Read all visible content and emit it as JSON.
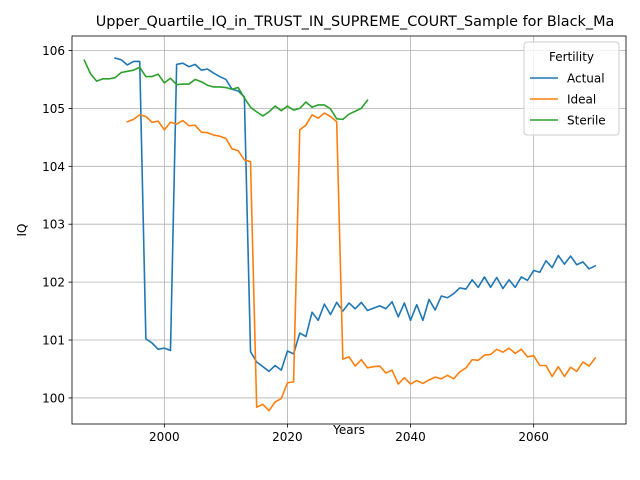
{
  "chart_data": {
    "type": "line",
    "title": "Upper_Quartile_IQ_in_TRUST_IN_SUPREME_COURT_Sample for Black_Ma",
    "xlabel": "Years",
    "ylabel": "IQ",
    "xlim": [
      1985,
      2075
    ],
    "ylim": [
      99.55,
      106.25
    ],
    "xticks": [
      2000,
      2020,
      2040,
      2060
    ],
    "yticks": [
      100,
      101,
      102,
      103,
      104,
      105,
      106
    ],
    "grid": true,
    "legend": {
      "title": "Fertility",
      "placement": "top-right"
    },
    "series": [
      {
        "name": "Actual",
        "color": "#1f77b4",
        "points": [
          [
            1992,
            105.87
          ],
          [
            1993,
            105.84
          ],
          [
            1994,
            105.75
          ],
          [
            1995,
            105.81
          ],
          [
            1996,
            105.81
          ],
          [
            1997,
            101.02
          ],
          [
            1998,
            100.95
          ],
          [
            1999,
            100.84
          ],
          [
            2000,
            100.86
          ],
          [
            2001,
            100.82
          ],
          [
            2002,
            105.76
          ],
          [
            2003,
            105.78
          ],
          [
            2004,
            105.72
          ],
          [
            2005,
            105.76
          ],
          [
            2006,
            105.66
          ],
          [
            2007,
            105.68
          ],
          [
            2008,
            105.61
          ],
          [
            2009,
            105.55
          ],
          [
            2010,
            105.5
          ],
          [
            2011,
            105.33
          ],
          [
            2012,
            105.3
          ],
          [
            2013,
            105.2
          ],
          [
            2014,
            100.8
          ],
          [
            2015,
            100.62
          ],
          [
            2016,
            100.54
          ],
          [
            2017,
            100.46
          ],
          [
            2018,
            100.56
          ],
          [
            2019,
            100.48
          ],
          [
            2020,
            100.81
          ],
          [
            2021,
            100.76
          ],
          [
            2022,
            101.12
          ],
          [
            2023,
            101.06
          ],
          [
            2024,
            101.48
          ],
          [
            2025,
            101.34
          ],
          [
            2026,
            101.62
          ],
          [
            2027,
            101.44
          ],
          [
            2028,
            101.65
          ],
          [
            2029,
            101.5
          ],
          [
            2030,
            101.64
          ],
          [
            2031,
            101.54
          ],
          [
            2032,
            101.65
          ],
          [
            2033,
            101.51
          ],
          [
            2034,
            101.55
          ],
          [
            2035,
            101.59
          ],
          [
            2036,
            101.54
          ],
          [
            2037,
            101.66
          ],
          [
            2038,
            101.4
          ],
          [
            2039,
            101.64
          ],
          [
            2040,
            101.34
          ],
          [
            2041,
            101.61
          ],
          [
            2042,
            101.34
          ],
          [
            2043,
            101.7
          ],
          [
            2044,
            101.52
          ],
          [
            2045,
            101.76
          ],
          [
            2046,
            101.73
          ],
          [
            2047,
            101.8
          ],
          [
            2048,
            101.9
          ],
          [
            2049,
            101.88
          ],
          [
            2050,
            102.04
          ],
          [
            2051,
            101.91
          ],
          [
            2052,
            102.09
          ],
          [
            2053,
            101.91
          ],
          [
            2054,
            102.08
          ],
          [
            2055,
            101.89
          ],
          [
            2056,
            102.04
          ],
          [
            2057,
            101.91
          ],
          [
            2058,
            102.09
          ],
          [
            2059,
            102.03
          ],
          [
            2060,
            102.2
          ],
          [
            2061,
            102.17
          ],
          [
            2062,
            102.37
          ],
          [
            2063,
            102.25
          ],
          [
            2064,
            102.46
          ],
          [
            2065,
            102.31
          ],
          [
            2066,
            102.45
          ],
          [
            2067,
            102.3
          ],
          [
            2068,
            102.35
          ],
          [
            2069,
            102.23
          ],
          [
            2070,
            102.28
          ]
        ]
      },
      {
        "name": "Ideal",
        "color": "#ff7f0e",
        "points": [
          [
            1994,
            104.77
          ],
          [
            1995,
            104.81
          ],
          [
            1996,
            104.89
          ],
          [
            1997,
            104.86
          ],
          [
            1998,
            104.76
          ],
          [
            1999,
            104.78
          ],
          [
            2000,
            104.63
          ],
          [
            2001,
            104.76
          ],
          [
            2002,
            104.73
          ],
          [
            2003,
            104.79
          ],
          [
            2004,
            104.7
          ],
          [
            2005,
            104.71
          ],
          [
            2006,
            104.59
          ],
          [
            2007,
            104.58
          ],
          [
            2008,
            104.54
          ],
          [
            2009,
            104.52
          ],
          [
            2010,
            104.48
          ],
          [
            2011,
            104.3
          ],
          [
            2012,
            104.27
          ],
          [
            2013,
            104.11
          ],
          [
            2014,
            104.08
          ],
          [
            2015,
            99.84
          ],
          [
            2016,
            99.89
          ],
          [
            2017,
            99.78
          ],
          [
            2018,
            99.93
          ],
          [
            2019,
            99.99
          ],
          [
            2020,
            100.26
          ],
          [
            2021,
            100.28
          ],
          [
            2022,
            104.63
          ],
          [
            2023,
            104.71
          ],
          [
            2024,
            104.89
          ],
          [
            2025,
            104.83
          ],
          [
            2026,
            104.92
          ],
          [
            2027,
            104.86
          ],
          [
            2028,
            104.77
          ],
          [
            2029,
            100.67
          ],
          [
            2030,
            100.71
          ],
          [
            2031,
            100.55
          ],
          [
            2032,
            100.66
          ],
          [
            2033,
            100.52
          ],
          [
            2034,
            100.54
          ],
          [
            2035,
            100.55
          ],
          [
            2036,
            100.43
          ],
          [
            2037,
            100.48
          ],
          [
            2038,
            100.24
          ],
          [
            2039,
            100.35
          ],
          [
            2040,
            100.24
          ],
          [
            2041,
            100.3
          ],
          [
            2042,
            100.25
          ],
          [
            2043,
            100.31
          ],
          [
            2044,
            100.36
          ],
          [
            2045,
            100.33
          ],
          [
            2046,
            100.39
          ],
          [
            2047,
            100.33
          ],
          [
            2048,
            100.45
          ],
          [
            2049,
            100.52
          ],
          [
            2050,
            100.66
          ],
          [
            2051,
            100.65
          ],
          [
            2052,
            100.74
          ],
          [
            2053,
            100.75
          ],
          [
            2054,
            100.84
          ],
          [
            2055,
            100.79
          ],
          [
            2056,
            100.86
          ],
          [
            2057,
            100.77
          ],
          [
            2058,
            100.84
          ],
          [
            2059,
            100.71
          ],
          [
            2060,
            100.73
          ],
          [
            2061,
            100.56
          ],
          [
            2062,
            100.56
          ],
          [
            2063,
            100.37
          ],
          [
            2064,
            100.54
          ],
          [
            2065,
            100.37
          ],
          [
            2066,
            100.53
          ],
          [
            2067,
            100.46
          ],
          [
            2068,
            100.62
          ],
          [
            2069,
            100.55
          ],
          [
            2070,
            100.69
          ]
        ]
      },
      {
        "name": "Sterile",
        "color": "#2ca02c",
        "points": [
          [
            1987,
            105.83
          ],
          [
            1988,
            105.6
          ],
          [
            1989,
            105.47
          ],
          [
            1990,
            105.51
          ],
          [
            1991,
            105.51
          ],
          [
            1992,
            105.53
          ],
          [
            1993,
            105.62
          ],
          [
            1994,
            105.64
          ],
          [
            1995,
            105.66
          ],
          [
            1996,
            105.71
          ],
          [
            1997,
            105.55
          ],
          [
            1998,
            105.55
          ],
          [
            1999,
            105.59
          ],
          [
            2000,
            105.44
          ],
          [
            2001,
            105.52
          ],
          [
            2002,
            105.41
          ],
          [
            2003,
            105.42
          ],
          [
            2004,
            105.42
          ],
          [
            2005,
            105.5
          ],
          [
            2006,
            105.46
          ],
          [
            2007,
            105.4
          ],
          [
            2008,
            105.37
          ],
          [
            2009,
            105.37
          ],
          [
            2010,
            105.36
          ],
          [
            2011,
            105.33
          ],
          [
            2012,
            105.36
          ],
          [
            2013,
            105.18
          ],
          [
            2014,
            105.02
          ],
          [
            2015,
            104.94
          ],
          [
            2016,
            104.87
          ],
          [
            2017,
            104.94
          ],
          [
            2018,
            105.04
          ],
          [
            2019,
            104.96
          ],
          [
            2020,
            105.04
          ],
          [
            2021,
            104.97
          ],
          [
            2022,
            105.0
          ],
          [
            2023,
            105.11
          ],
          [
            2024,
            105.02
          ],
          [
            2025,
            105.06
          ],
          [
            2026,
            105.06
          ],
          [
            2027,
            104.99
          ],
          [
            2028,
            104.82
          ],
          [
            2029,
            104.81
          ],
          [
            2030,
            104.9
          ],
          [
            2031,
            104.95
          ],
          [
            2032,
            105.0
          ],
          [
            2033,
            105.14
          ]
        ]
      }
    ]
  }
}
